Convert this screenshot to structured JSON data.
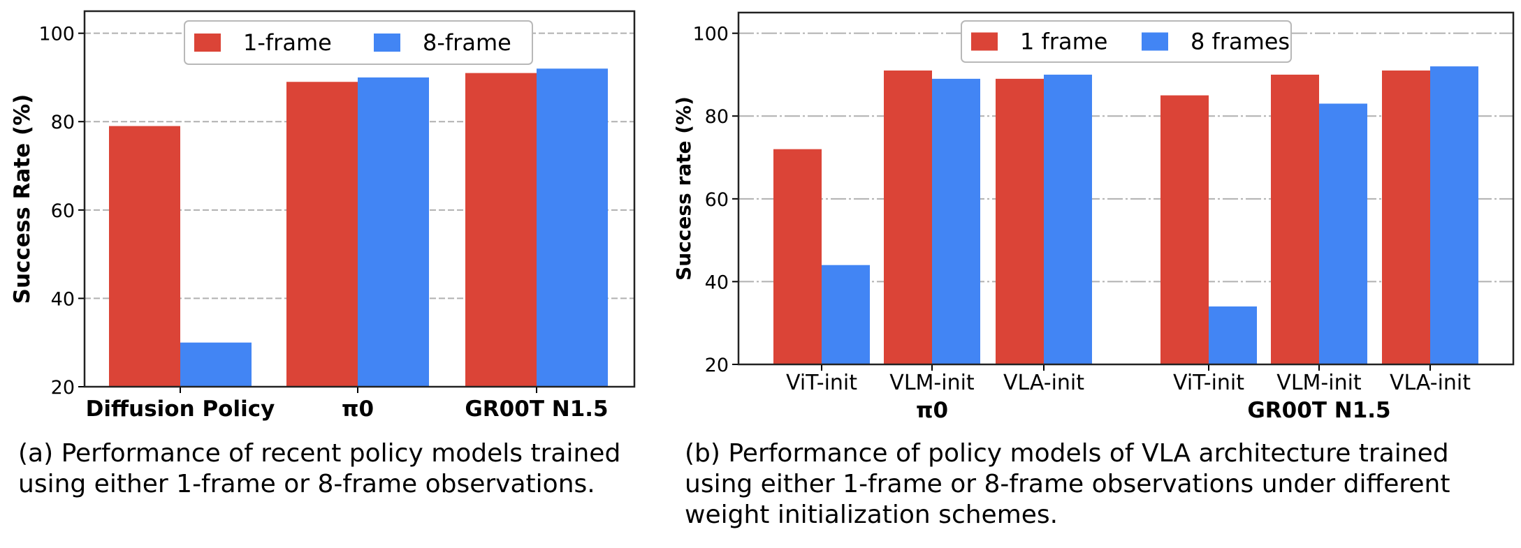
{
  "colors": {
    "one_frame": "#db4437",
    "eight_frame": "#4285f4",
    "grid": "#b0b0b0",
    "axis": "#000000"
  },
  "chart_data": [
    {
      "id": "a",
      "type": "bar",
      "title": "",
      "xlabel": "",
      "ylabel": "Success Rate (%)",
      "ylim": [
        20,
        105
      ],
      "yticks": [
        20,
        40,
        60,
        80,
        100
      ],
      "grid": true,
      "grid_style": "dashed",
      "legend_position": "top-center",
      "categories": [
        "Diffusion Policy",
        "π0",
        "GR00T N1.5"
      ],
      "series": [
        {
          "name": "1-frame",
          "values": [
            79,
            89,
            91
          ]
        },
        {
          "name": "8-frame",
          "values": [
            30,
            90,
            92
          ]
        }
      ]
    },
    {
      "id": "b",
      "type": "bar",
      "title": "",
      "xlabel": "",
      "ylabel": "Success rate (%)",
      "ylim": [
        20,
        105
      ],
      "yticks": [
        20,
        40,
        60,
        80,
        100
      ],
      "grid": true,
      "grid_style": "dashdot",
      "legend_position": "top-right",
      "groups": [
        {
          "name": "π0",
          "categories": [
            "ViT-init",
            "VLM-init",
            "VLA-init"
          ]
        },
        {
          "name": "GR00T N1.5",
          "categories": [
            "ViT-init",
            "VLM-init",
            "VLA-init"
          ]
        }
      ],
      "categories": [
        "ViT-init",
        "VLM-init",
        "VLA-init",
        "ViT-init",
        "VLM-init",
        "VLA-init"
      ],
      "series": [
        {
          "name": "1 frame",
          "values": [
            72,
            91,
            89,
            85,
            90,
            91
          ]
        },
        {
          "name": "8 frames",
          "values": [
            44,
            89,
            90,
            34,
            83,
            92
          ]
        }
      ]
    }
  ],
  "captions": {
    "a": "(a) Performance of recent policy models trained using either 1-frame or 8-frame observations.",
    "b": "(b) Performance of policy models of VLA architecture trained using either 1-frame or 8-frame observations under different weight initialization schemes."
  }
}
